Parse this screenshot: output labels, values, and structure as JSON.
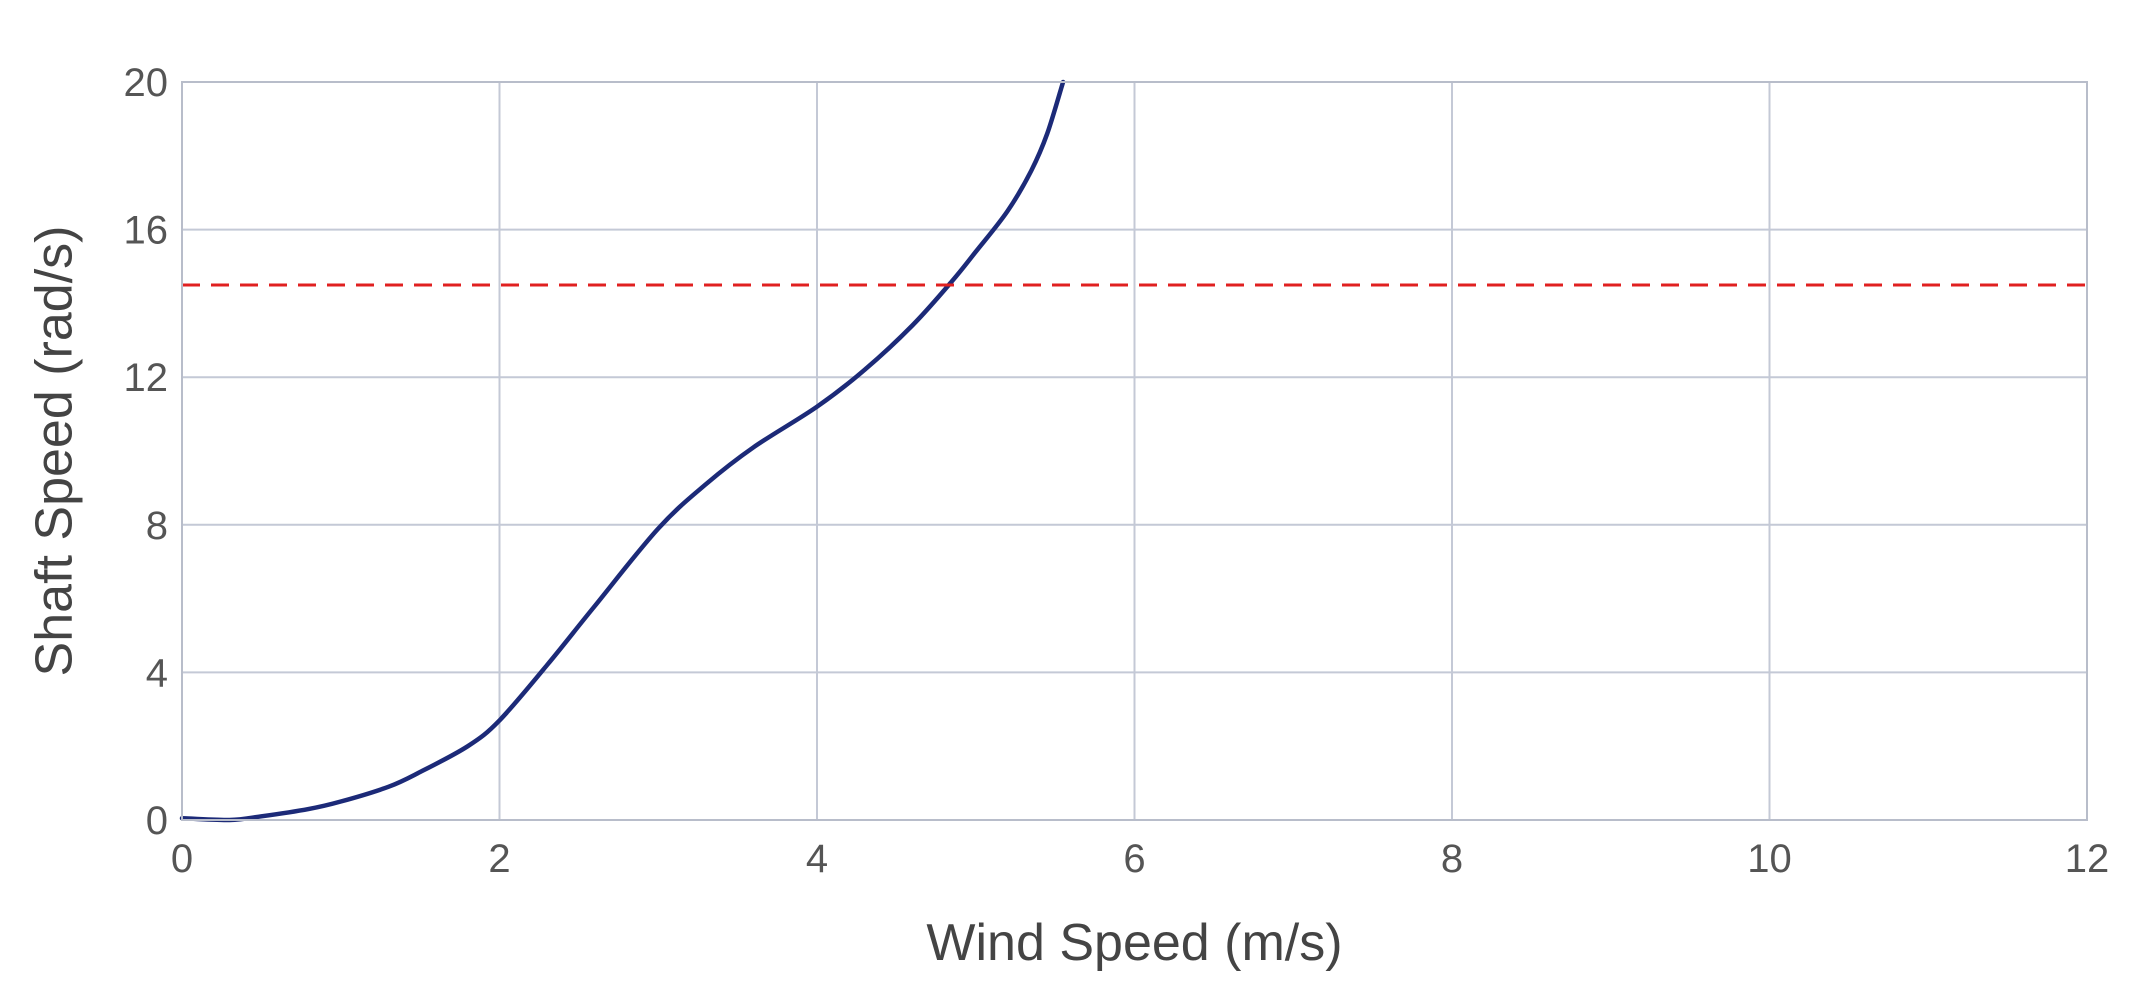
{
  "chart_data": {
    "type": "line",
    "title": "",
    "xlabel": "Wind Speed (m/s)",
    "ylabel": "Shaft Speed (rad/s)",
    "xlim": [
      0,
      12
    ],
    "ylim": [
      0,
      20
    ],
    "x_ticks": [
      0,
      2,
      4,
      6,
      8,
      10,
      12
    ],
    "y_ticks": [
      0,
      4,
      8,
      12,
      16,
      20
    ],
    "x_tick_labels": [
      "0",
      "2",
      "4",
      "6",
      "8",
      "10",
      "12"
    ],
    "y_tick_labels": [
      "0",
      "4",
      "8",
      "12",
      "16",
      "20"
    ],
    "grid": true,
    "legend": "none",
    "series": [
      {
        "color": "#1c2a78",
        "style": "solid",
        "x": [
          0,
          0.3,
          0.5,
          0.8,
          1.0,
          1.3,
          1.5,
          1.8,
          2.0,
          2.3,
          2.6,
          3.0,
          3.3,
          3.6,
          4.0,
          4.3,
          4.6,
          4.85,
          5.0,
          5.2,
          5.35,
          5.45,
          5.55
        ],
        "y": [
          0.05,
          0.0,
          0.1,
          0.3,
          0.5,
          0.9,
          1.3,
          2.0,
          2.7,
          4.2,
          5.8,
          7.9,
          9.1,
          10.1,
          11.2,
          12.2,
          13.4,
          14.6,
          15.4,
          16.5,
          17.6,
          18.6,
          20.0
        ]
      },
      {
        "color": "#e02020",
        "style": "dashed",
        "x": [
          0,
          12
        ],
        "y": [
          14.5,
          14.5
        ]
      }
    ]
  }
}
